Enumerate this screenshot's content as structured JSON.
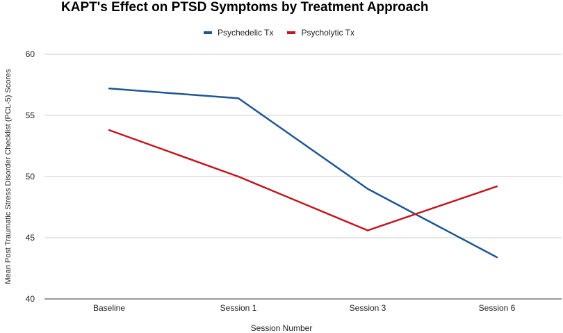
{
  "chart_data": {
    "type": "line",
    "title": "KAPT's Effect on PTSD Symptoms by Treatment Approach",
    "xlabel": "Session Number",
    "ylabel": "Mean Post Traumatic Stress Disorder Checklist (PCL-5) Scores",
    "categories": [
      "Baseline",
      "Session 1",
      "Session 3",
      "Session 6"
    ],
    "ylim": [
      40,
      60
    ],
    "yticks": [
      40,
      45,
      50,
      55,
      60
    ],
    "grid": true,
    "legend_position": "top",
    "series": [
      {
        "name": "Psychedelic Tx",
        "color": "#1f5592",
        "values": [
          57.2,
          56.4,
          49.0,
          43.4
        ]
      },
      {
        "name": "Psycholytic Tx",
        "color": "#c0181f",
        "values": [
          53.8,
          50.0,
          45.6,
          49.2
        ]
      }
    ]
  }
}
